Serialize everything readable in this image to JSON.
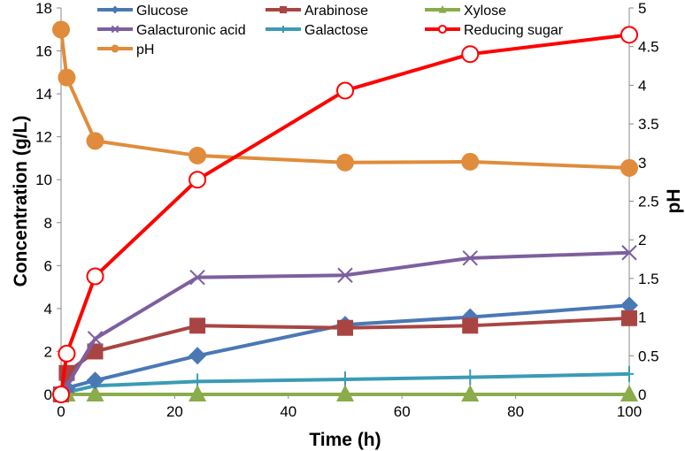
{
  "chart_data": {
    "type": "line",
    "xlabel": "Time (h)",
    "ylabel": "Concentration (g/L)",
    "y2label": "pH",
    "xlim": [
      0,
      100
    ],
    "ylim": [
      0,
      18
    ],
    "y2lim": [
      0,
      5
    ],
    "xticks": [
      "0",
      "20",
      "40",
      "60",
      "80",
      "100"
    ],
    "yticks": [
      "0",
      "2",
      "4",
      "6",
      "8",
      "10",
      "12",
      "14",
      "16",
      "18"
    ],
    "y2ticks": [
      "0",
      "0.5",
      "1",
      "1.5",
      "2",
      "2.5",
      "3",
      "3.5",
      "4",
      "4.5",
      "5"
    ],
    "x": [
      0,
      1,
      6,
      24,
      50,
      72,
      100
    ],
    "series": [
      {
        "name": "Glucose",
        "axis": "left",
        "color": "#4a78b5",
        "marker": "diamond",
        "values": [
          0,
          0.3,
          0.65,
          1.8,
          3.25,
          3.6,
          4.15
        ]
      },
      {
        "name": "Arabinose",
        "axis": "left",
        "color": "#a84543",
        "marker": "square",
        "values": [
          0,
          1.0,
          2.0,
          3.2,
          3.1,
          3.2,
          3.55
        ]
      },
      {
        "name": "Xylose",
        "axis": "left",
        "color": "#8aac4a",
        "marker": "triangle",
        "values": [
          0,
          0,
          0,
          0,
          0,
          0,
          0
        ]
      },
      {
        "name": "Galacturonic acid",
        "axis": "left",
        "color": "#7d5f9f",
        "marker": "x",
        "values": [
          0,
          0.4,
          2.6,
          5.45,
          5.55,
          6.35,
          6.6
        ]
      },
      {
        "name": "Galactose",
        "axis": "left",
        "color": "#3b9bb5",
        "marker": "plus",
        "values": [
          0,
          0.1,
          0.4,
          0.6,
          0.7,
          0.8,
          0.95
        ]
      },
      {
        "name": "Reducing sugar",
        "axis": "left",
        "color": "#ff0000",
        "marker": "open-circle",
        "values": [
          0,
          1.9,
          5.5,
          10.0,
          14.15,
          15.85,
          16.75
        ]
      },
      {
        "name": "pH",
        "axis": "right",
        "color": "#e08c3c",
        "marker": "circle",
        "values": [
          4.72,
          4.1,
          3.28,
          3.09,
          3.0,
          3.01,
          2.93
        ]
      }
    ],
    "legend": "top"
  }
}
